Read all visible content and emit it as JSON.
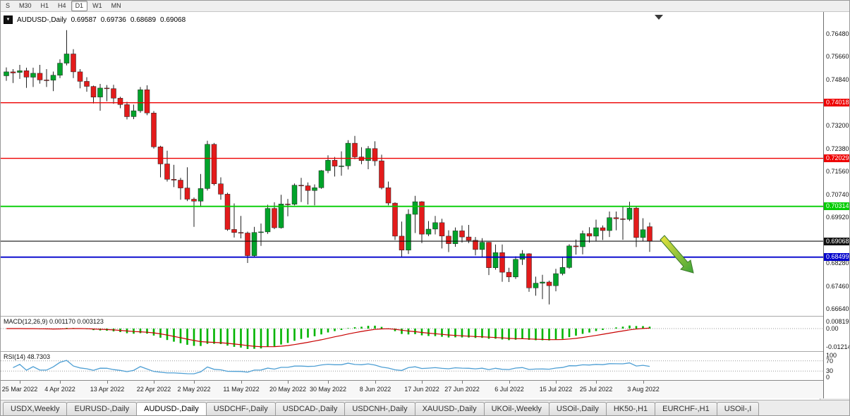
{
  "toolbar": {
    "timeframes": [
      "S",
      "M30",
      "H1",
      "H4",
      "D1",
      "W1",
      "MN"
    ],
    "active_timeframe": "D1"
  },
  "header": {
    "dropdown_glyph": "▼",
    "symbol": "AUDUSD-,Daily",
    "open": "0.69587",
    "high": "0.69736",
    "low": "0.68689",
    "close": "0.69068"
  },
  "indicators": {
    "macd": {
      "label": "MACD(12,26,9) 0.001170 0.003123",
      "axis_labels": [
        "0.008197",
        "0.00",
        "-0.01214"
      ]
    },
    "rsi": {
      "label": "RSI(14) 48.7303",
      "axis_labels": [
        "100",
        "70",
        "30",
        "0"
      ]
    }
  },
  "tabs": {
    "items": [
      "USDX,Weekly",
      "EURUSD-,Daily",
      "AUDUSD-,Daily",
      "USDCHF-,Daily",
      "USDCAD-,Daily",
      "USDCNH-,Daily",
      "XAUUSD-,Daily",
      "UKOil-,Weekly",
      "USOil-,Daily",
      "HK50-,H1",
      "EURCHF-,H1",
      "USOil-,I"
    ],
    "active": "AUDUSD-,Daily",
    "scroll_left": "◄",
    "scroll_right": "►"
  },
  "chart_data": {
    "type": "candlestick",
    "symbol": "AUDUSD-",
    "timeframe": "Daily",
    "y_domain": [
      0.664,
      0.7726
    ],
    "price_ticks": [
      "0.76480",
      "0.75660",
      "0.74840",
      "0.73200",
      "0.72380",
      "0.71560",
      "0.70740",
      "0.69920",
      "0.68280",
      "0.67460",
      "0.66640"
    ],
    "h_lines": [
      {
        "price": 0.74018,
        "label": "0.74018",
        "color": "#ee0000",
        "width": 1.4
      },
      {
        "price": 0.72029,
        "label": "0.72029",
        "color": "#ee0000",
        "width": 1.4
      },
      {
        "price": 0.70314,
        "label": "0.70314",
        "color": "#00cc00",
        "width": 1.8
      },
      {
        "price": 0.69068,
        "label": "0.69068",
        "color": "#111111",
        "width": 1.1
      },
      {
        "price": 0.68499,
        "label": "0.68499",
        "color": "#0000cc",
        "width": 1.8
      }
    ],
    "x_ticks": [
      {
        "i": 2,
        "label": "25 Mar 2022"
      },
      {
        "i": 8,
        "label": "4 Apr 2022"
      },
      {
        "i": 15,
        "label": "13 Apr 2022"
      },
      {
        "i": 22,
        "label": "22 Apr 2022"
      },
      {
        "i": 28,
        "label": "2 May 2022"
      },
      {
        "i": 35,
        "label": "11 May 2022"
      },
      {
        "i": 42,
        "label": "20 May 2022"
      },
      {
        "i": 48,
        "label": "30 May 2022"
      },
      {
        "i": 55,
        "label": "8 Jun 2022"
      },
      {
        "i": 62,
        "label": "17 Jun 2022"
      },
      {
        "i": 68,
        "label": "27 Jun 2022"
      },
      {
        "i": 75,
        "label": "6 Jul 2022"
      },
      {
        "i": 82,
        "label": "15 Jul 2022"
      },
      {
        "i": 88,
        "label": "25 Jul 2022"
      },
      {
        "i": 95,
        "label": "3 Aug 2022"
      }
    ],
    "up_color": "#00a32a",
    "down_color": "#e31b1b",
    "macd_hist_color": "#00b400",
    "macd_signal_color": "#c80000",
    "rsi_line_color": "#4e9fd4",
    "annotation": {
      "type": "arrow-down-right",
      "color_start": "#ece43e",
      "color_end": "#3da437"
    },
    "candles": [
      [
        0.7498,
        0.7528,
        0.748,
        0.7512
      ],
      [
        0.7512,
        0.7522,
        0.7472,
        0.7508
      ],
      [
        0.751,
        0.7537,
        0.7487,
        0.7516
      ],
      [
        0.7516,
        0.7527,
        0.7455,
        0.7493
      ],
      [
        0.7493,
        0.7527,
        0.7458,
        0.7507
      ],
      [
        0.7507,
        0.7537,
        0.747,
        0.7483
      ],
      [
        0.7483,
        0.7522,
        0.7458,
        0.7482
      ],
      [
        0.7482,
        0.7513,
        0.7443,
        0.75
      ],
      [
        0.75,
        0.7557,
        0.749,
        0.7543
      ],
      [
        0.7543,
        0.7661,
        0.7535,
        0.7576
      ],
      [
        0.7576,
        0.7593,
        0.749,
        0.7512
      ],
      [
        0.7512,
        0.7522,
        0.7453,
        0.7478
      ],
      [
        0.7478,
        0.7493,
        0.7441,
        0.746
      ],
      [
        0.746,
        0.7463,
        0.7399,
        0.7422
      ],
      [
        0.7422,
        0.7469,
        0.7373,
        0.7454
      ],
      [
        0.7454,
        0.7465,
        0.7407,
        0.7452
      ],
      [
        0.7452,
        0.7466,
        0.7398,
        0.7418
      ],
      [
        0.7418,
        0.7423,
        0.7382,
        0.7395
      ],
      [
        0.7395,
        0.7405,
        0.7342,
        0.7352
      ],
      [
        0.7352,
        0.7395,
        0.7343,
        0.7373
      ],
      [
        0.7373,
        0.7458,
        0.7366,
        0.7448
      ],
      [
        0.7448,
        0.7464,
        0.7357,
        0.7365
      ],
      [
        0.7365,
        0.7372,
        0.7238,
        0.7244
      ],
      [
        0.7244,
        0.7248,
        0.7135,
        0.7183
      ],
      [
        0.7183,
        0.723,
        0.712,
        0.7128
      ],
      [
        0.7128,
        0.718,
        0.71,
        0.7125
      ],
      [
        0.7125,
        0.7133,
        0.7055,
        0.7097
      ],
      [
        0.7097,
        0.7171,
        0.705,
        0.7057
      ],
      [
        0.7057,
        0.7063,
        0.6958,
        0.705
      ],
      [
        0.705,
        0.7147,
        0.7029,
        0.7095
      ],
      [
        0.7095,
        0.7266,
        0.7088,
        0.7253
      ],
      [
        0.7253,
        0.7258,
        0.7106,
        0.7112
      ],
      [
        0.7112,
        0.7135,
        0.7055,
        0.7075
      ],
      [
        0.7075,
        0.708,
        0.6944,
        0.6949
      ],
      [
        0.6949,
        0.7042,
        0.692,
        0.6938
      ],
      [
        0.6938,
        0.6997,
        0.6917,
        0.6936
      ],
      [
        0.6936,
        0.6941,
        0.6829,
        0.6855
      ],
      [
        0.6855,
        0.6958,
        0.6848,
        0.6938
      ],
      [
        0.6938,
        0.697,
        0.689,
        0.694
      ],
      [
        0.694,
        0.7037,
        0.6933,
        0.7024
      ],
      [
        0.7024,
        0.7046,
        0.695,
        0.6955
      ],
      [
        0.6955,
        0.7073,
        0.6952,
        0.704
      ],
      [
        0.704,
        0.7058,
        0.6996,
        0.7039
      ],
      [
        0.7039,
        0.7113,
        0.7035,
        0.7107
      ],
      [
        0.7107,
        0.7133,
        0.7047,
        0.7105
      ],
      [
        0.7105,
        0.7117,
        0.7038,
        0.7088
      ],
      [
        0.7088,
        0.711,
        0.7035,
        0.7098
      ],
      [
        0.7098,
        0.7161,
        0.7094,
        0.7159
      ],
      [
        0.7159,
        0.7214,
        0.715,
        0.7196
      ],
      [
        0.7196,
        0.7208,
        0.7138,
        0.7175
      ],
      [
        0.7175,
        0.7228,
        0.7141,
        0.7176
      ],
      [
        0.7176,
        0.7268,
        0.7163,
        0.7257
      ],
      [
        0.7257,
        0.7283,
        0.72,
        0.7208
      ],
      [
        0.7208,
        0.7243,
        0.7182,
        0.7195
      ],
      [
        0.7195,
        0.7247,
        0.7164,
        0.7238
      ],
      [
        0.7238,
        0.7264,
        0.7176,
        0.7194
      ],
      [
        0.7194,
        0.7216,
        0.7092,
        0.7098
      ],
      [
        0.7098,
        0.712,
        0.7035,
        0.7043
      ],
      [
        0.7043,
        0.7046,
        0.6911,
        0.6925
      ],
      [
        0.6925,
        0.6977,
        0.685,
        0.6875
      ],
      [
        0.6875,
        0.7021,
        0.6861,
        0.7003
      ],
      [
        0.7003,
        0.7069,
        0.6936,
        0.7048
      ],
      [
        0.7048,
        0.705,
        0.69,
        0.6932
      ],
      [
        0.6932,
        0.6979,
        0.6925,
        0.695
      ],
      [
        0.695,
        0.6997,
        0.6931,
        0.6973
      ],
      [
        0.6973,
        0.6987,
        0.6881,
        0.6925
      ],
      [
        0.6925,
        0.6946,
        0.6868,
        0.6898
      ],
      [
        0.6898,
        0.6956,
        0.6887,
        0.6944
      ],
      [
        0.6944,
        0.6963,
        0.6902,
        0.6922
      ],
      [
        0.6922,
        0.6965,
        0.69,
        0.691
      ],
      [
        0.691,
        0.6922,
        0.6856,
        0.6877
      ],
      [
        0.6877,
        0.6918,
        0.685,
        0.6903
      ],
      [
        0.6903,
        0.6904,
        0.6786,
        0.6812
      ],
      [
        0.6812,
        0.6895,
        0.6805,
        0.6866
      ],
      [
        0.6866,
        0.6895,
        0.6762,
        0.6796
      ],
      [
        0.6796,
        0.6812,
        0.6761,
        0.6779
      ],
      [
        0.6779,
        0.6853,
        0.6772,
        0.6842
      ],
      [
        0.6842,
        0.6875,
        0.6822,
        0.6862
      ],
      [
        0.6862,
        0.6864,
        0.6726,
        0.674
      ],
      [
        0.674,
        0.678,
        0.6712,
        0.6757
      ],
      [
        0.6757,
        0.6787,
        0.67,
        0.6761
      ],
      [
        0.6761,
        0.6766,
        0.6681,
        0.6748
      ],
      [
        0.6748,
        0.6808,
        0.6728,
        0.6791
      ],
      [
        0.6791,
        0.6852,
        0.6785,
        0.6813
      ],
      [
        0.6813,
        0.6896,
        0.6808,
        0.689
      ],
      [
        0.689,
        0.6913,
        0.6859,
        0.6887
      ],
      [
        0.6887,
        0.6945,
        0.686,
        0.6934
      ],
      [
        0.6934,
        0.6957,
        0.6902,
        0.6925
      ],
      [
        0.6925,
        0.6984,
        0.6906,
        0.6955
      ],
      [
        0.6955,
        0.6963,
        0.6911,
        0.6945
      ],
      [
        0.6945,
        0.7013,
        0.6922,
        0.6991
      ],
      [
        0.6991,
        0.7013,
        0.6946,
        0.6987
      ],
      [
        0.6987,
        0.7033,
        0.6912,
        0.6985
      ],
      [
        0.6985,
        0.7048,
        0.6979,
        0.7025
      ],
      [
        0.7025,
        0.7032,
        0.6886,
        0.692
      ],
      [
        0.692,
        0.6989,
        0.6907,
        0.6948
      ],
      [
        0.69587,
        0.69736,
        0.68689,
        0.69068
      ]
    ]
  }
}
